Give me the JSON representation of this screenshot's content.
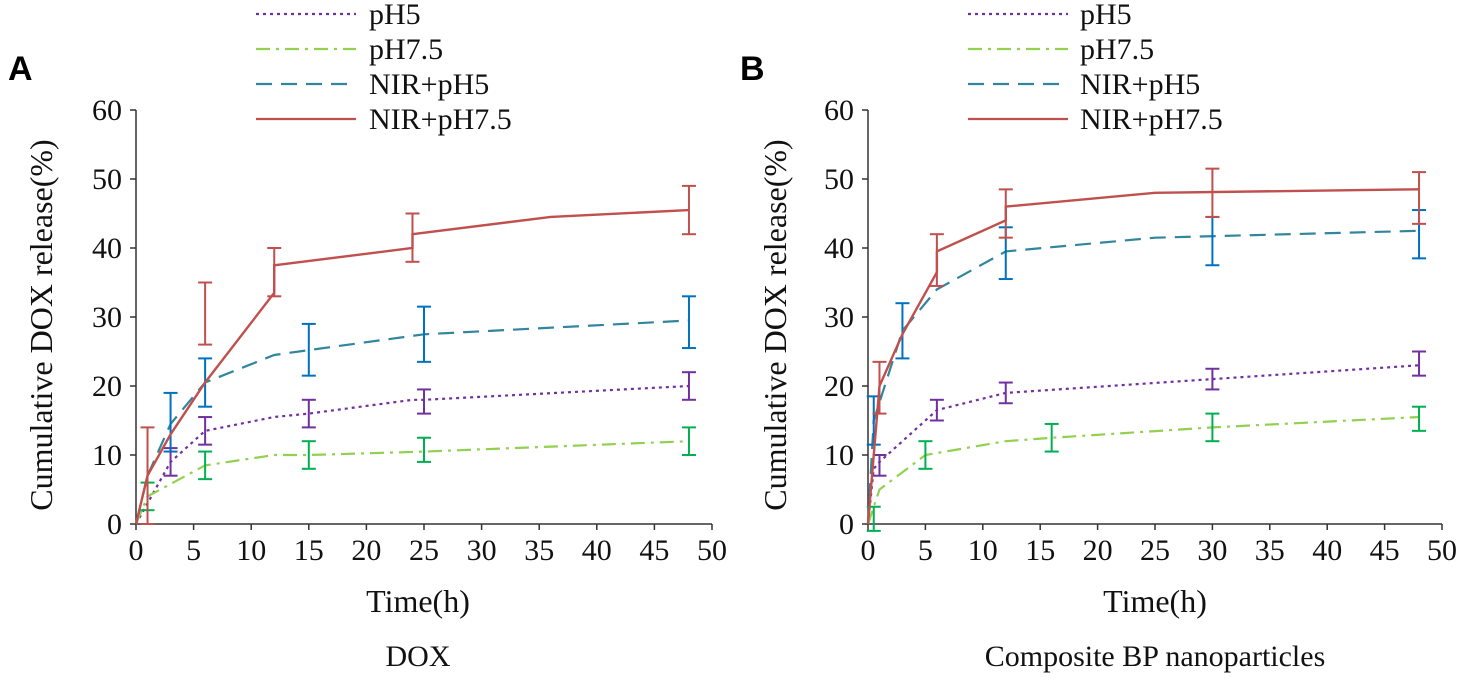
{
  "colors": {
    "pH5": "#7030a0",
    "pH7.5": "#92d050",
    "NIR+pH5": "#31859c",
    "NIR+pH7.5": "#c0504d",
    "err_pH5": "#7030a0",
    "err_pH7.5": "#00b050",
    "err_NIR+pH5": "#0070c0",
    "err_NIR+pH7.5": "#c0504d"
  },
  "chart_data": [
    {
      "panel_label": "A",
      "type": "line",
      "caption": "DOX",
      "xlabel": "Time(h)",
      "ylabel": "Cumulative DOX release(%)",
      "xlim": [
        0,
        50
      ],
      "ylim": [
        0,
        60
      ],
      "xticks": [
        0,
        5,
        10,
        15,
        20,
        25,
        30,
        35,
        40,
        45,
        50
      ],
      "yticks": [
        0,
        10,
        20,
        30,
        40,
        50,
        60
      ],
      "legend": [
        "pH5",
        "pH7.5",
        "NIR+pH5",
        "NIR+pH7.5"
      ],
      "series": [
        {
          "name": "pH5",
          "style": "dotted",
          "x": [
            0,
            3,
            6,
            12,
            15,
            24,
            25,
            48
          ],
          "y": [
            0,
            9,
            13.5,
            15.5,
            16,
            18,
            18,
            20
          ],
          "err_x": [
            3,
            6,
            15,
            25,
            48
          ],
          "err_lo": [
            7,
            11.5,
            14,
            16,
            18
          ],
          "err_hi": [
            11,
            15.5,
            18,
            19.5,
            22
          ]
        },
        {
          "name": "pH7.5",
          "style": "dashdot",
          "x": [
            0,
            1,
            6,
            12,
            15,
            25,
            48
          ],
          "y": [
            0,
            4,
            8.5,
            10,
            10,
            10.5,
            12
          ],
          "err_x": [
            1,
            6,
            15,
            25,
            48
          ],
          "err_lo": [
            2,
            6.5,
            8,
            9,
            10
          ],
          "err_hi": [
            6,
            10.5,
            12,
            12.5,
            14
          ]
        },
        {
          "name": "NIR+pH5",
          "style": "dashed",
          "x": [
            0,
            1,
            3,
            6,
            12,
            15,
            25,
            48
          ],
          "y": [
            0,
            7,
            14.5,
            20.5,
            24.5,
            25.2,
            27.5,
            29.5
          ],
          "err_x": [
            3,
            6,
            15,
            25,
            48
          ],
          "err_lo": [
            10.5,
            17,
            21.5,
            23.5,
            25.5
          ],
          "err_hi": [
            19,
            24,
            29,
            31.5,
            33
          ]
        },
        {
          "name": "NIR+pH7.5",
          "style": "solid",
          "x": [
            0,
            1,
            3,
            6,
            12,
            12,
            24,
            24,
            36,
            48
          ],
          "y": [
            0,
            7,
            13,
            20.5,
            33.5,
            37.5,
            40,
            42,
            44.5,
            45.5
          ],
          "err_x": [
            1,
            6,
            12,
            24,
            48
          ],
          "err_lo": [
            0,
            26,
            33,
            38,
            42
          ],
          "err_hi": [
            14,
            35,
            40,
            45,
            49
          ]
        }
      ]
    },
    {
      "panel_label": "B",
      "type": "line",
      "caption": "Composite BP nanoparticles",
      "xlabel": "Time(h)",
      "ylabel": "Cumulative DOX release(%)",
      "xlim": [
        0,
        50
      ],
      "ylim": [
        0,
        60
      ],
      "xticks": [
        0,
        5,
        10,
        15,
        20,
        25,
        30,
        35,
        40,
        45,
        50
      ],
      "yticks": [
        0,
        10,
        20,
        30,
        40,
        50,
        60
      ],
      "legend": [
        "pH5",
        "pH7.5",
        "NIR+pH5",
        "NIR+pH7.5"
      ],
      "series": [
        {
          "name": "pH5",
          "style": "dotted",
          "x": [
            0,
            0.5,
            1,
            6,
            12,
            30,
            48
          ],
          "y": [
            0,
            8,
            9,
            16.5,
            19,
            21,
            23
          ],
          "err_x": [
            1,
            6,
            12,
            30,
            48
          ],
          "err_lo": [
            7,
            15,
            17.5,
            19.5,
            21.5
          ],
          "err_hi": [
            10,
            18,
            20.5,
            22.5,
            25
          ]
        },
        {
          "name": "pH7.5",
          "style": "dashdot",
          "x": [
            0,
            1,
            5,
            12,
            16,
            30,
            48
          ],
          "y": [
            0,
            5,
            10,
            12,
            12.5,
            14,
            15.5
          ],
          "err_x": [
            0.5,
            5,
            16,
            30,
            48
          ],
          "err_lo": [
            -1,
            8,
            10.5,
            12,
            13.5
          ],
          "err_hi": [
            2.5,
            12,
            14.5,
            16,
            17
          ]
        },
        {
          "name": "NIR+pH5",
          "style": "dashed",
          "x": [
            0,
            0.5,
            3,
            6,
            12,
            25,
            48
          ],
          "y": [
            0,
            15,
            28,
            34,
            39.5,
            41.5,
            42.5
          ],
          "err_x": [
            0.5,
            3,
            12,
            30,
            48
          ],
          "err_lo": [
            11.5,
            24,
            35.5,
            37.5,
            38.5
          ],
          "err_hi": [
            18.5,
            32,
            43,
            44.5,
            45.5
          ]
        },
        {
          "name": "NIR+pH7.5",
          "style": "solid",
          "x": [
            0,
            1,
            3,
            6,
            6,
            12,
            12,
            25,
            48
          ],
          "y": [
            0,
            20,
            27.5,
            36.5,
            39.5,
            44,
            46,
            48,
            48.5
          ],
          "err_x": [
            1,
            6,
            12,
            30,
            48
          ],
          "err_lo": [
            16,
            34.5,
            41.5,
            44.5,
            43.5
          ],
          "err_hi": [
            23.5,
            42,
            48.5,
            51.5,
            51
          ]
        }
      ]
    }
  ]
}
